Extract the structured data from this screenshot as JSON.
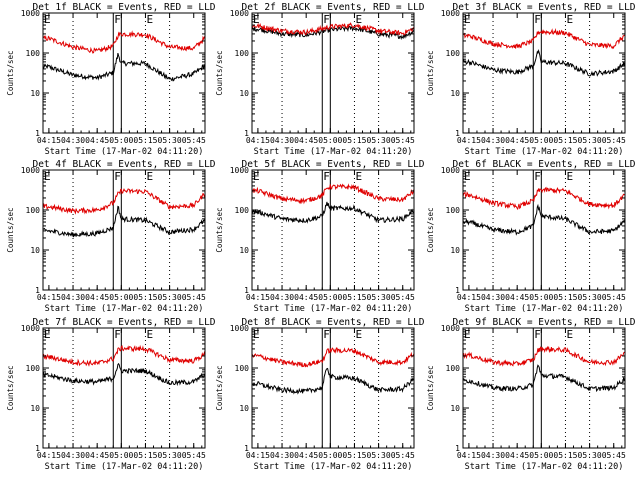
{
  "figure": {
    "ylabel": "Counts/sec",
    "xlabel": "Start Time (17-Mar-02 04:11:20)",
    "time_ticks": [
      "04:15",
      "04:30",
      "04:45",
      "05:00",
      "05:15",
      "05:30",
      "05:45"
    ],
    "y_ticks": [
      "1",
      "10",
      "100",
      "1000"
    ],
    "colors": {
      "events": "#000000",
      "lld": "#e00000",
      "frame": "#000000"
    },
    "background": "#ffffff"
  },
  "chart_data": [
    {
      "type": "line",
      "title": "Det 1f BLACK = Events, RED = LLD",
      "yscale": "log",
      "ylim": [
        1,
        1000
      ],
      "xlim": [
        "04:11:20",
        "05:52:00"
      ],
      "region_markers": [
        {
          "label": "F",
          "from": "04:55",
          "to": "05:00"
        },
        {
          "label": "E",
          "from": "05:15",
          "to": "05:52"
        }
      ],
      "vlines_dotted": [
        "04:30",
        "05:30"
      ],
      "series": [
        {
          "name": "Events",
          "color": "#000000",
          "x": [
            "04:15",
            "04:30",
            "04:45",
            "04:55",
            "04:58",
            "05:00",
            "05:15",
            "05:30",
            "05:45",
            "05:52"
          ],
          "y": [
            45,
            28,
            24,
            32,
            95,
            55,
            55,
            22,
            30,
            48
          ]
        },
        {
          "name": "LLD",
          "color": "#e00000",
          "x": [
            "04:15",
            "04:30",
            "04:45",
            "04:55",
            "04:58",
            "05:00",
            "05:15",
            "05:30",
            "05:45",
            "05:52"
          ],
          "y": [
            230,
            140,
            110,
            150,
            280,
            300,
            290,
            140,
            130,
            240
          ]
        }
      ]
    },
    {
      "type": "line",
      "title": "Det 2f BLACK = Events, RED = LLD",
      "yscale": "log",
      "ylim": [
        1,
        1000
      ],
      "xlim": [
        "04:11:20",
        "05:52:00"
      ],
      "region_markers": [
        {
          "label": "F",
          "from": "04:55",
          "to": "05:00"
        },
        {
          "label": "E",
          "from": "05:15",
          "to": "05:52"
        }
      ],
      "vlines_dotted": [
        "04:30",
        "05:30"
      ],
      "series": [
        {
          "name": "Events",
          "color": "#000000",
          "x": [
            "04:15",
            "04:30",
            "04:45",
            "05:00",
            "05:15",
            "05:30",
            "05:45",
            "05:52"
          ],
          "y": [
            400,
            300,
            280,
            380,
            420,
            300,
            260,
            350
          ]
        },
        {
          "name": "LLD",
          "color": "#e00000",
          "x": [
            "04:15",
            "04:30",
            "04:45",
            "05:00",
            "05:15",
            "05:30",
            "05:45",
            "05:52"
          ],
          "y": [
            470,
            360,
            330,
            450,
            500,
            360,
            310,
            410
          ]
        }
      ]
    },
    {
      "type": "line",
      "title": "Det 3f BLACK = Events, RED = LLD",
      "yscale": "log",
      "ylim": [
        1,
        1000
      ],
      "xlim": [
        "04:11:20",
        "05:52:00"
      ],
      "region_markers": [
        {
          "label": "F",
          "from": "04:55",
          "to": "05:00"
        },
        {
          "label": "E",
          "from": "05:15",
          "to": "05:52"
        }
      ],
      "vlines_dotted": [
        "04:30",
        "05:30"
      ],
      "series": [
        {
          "name": "Events",
          "color": "#000000",
          "x": [
            "04:15",
            "04:30",
            "04:45",
            "04:55",
            "04:58",
            "05:00",
            "05:15",
            "05:30",
            "05:45",
            "05:52"
          ],
          "y": [
            60,
            38,
            33,
            48,
            110,
            60,
            55,
            30,
            35,
            55
          ]
        },
        {
          "name": "LLD",
          "color": "#e00000",
          "x": [
            "04:15",
            "04:30",
            "04:45",
            "04:55",
            "04:58",
            "05:00",
            "05:15",
            "05:30",
            "05:45",
            "05:52"
          ],
          "y": [
            270,
            170,
            145,
            200,
            330,
            340,
            320,
            160,
            150,
            280
          ]
        }
      ]
    },
    {
      "type": "line",
      "title": "Det 4f BLACK = Events, RED = LLD",
      "yscale": "log",
      "ylim": [
        1,
        1000
      ],
      "xlim": [
        "04:11:20",
        "05:52:00"
      ],
      "region_markers": [
        {
          "label": "F",
          "from": "04:55",
          "to": "05:00"
        },
        {
          "label": "E",
          "from": "05:15",
          "to": "05:52"
        }
      ],
      "vlines_dotted": [
        "04:30",
        "05:30"
      ],
      "series": [
        {
          "name": "Events",
          "color": "#000000",
          "x": [
            "04:15",
            "04:30",
            "04:45",
            "04:55",
            "04:58",
            "05:00",
            "05:15",
            "05:30",
            "05:45",
            "05:52"
          ],
          "y": [
            30,
            24,
            26,
            36,
            120,
            60,
            55,
            28,
            33,
            55
          ]
        },
        {
          "name": "LLD",
          "color": "#e00000",
          "x": [
            "04:15",
            "04:30",
            "04:45",
            "04:55",
            "04:58",
            "05:00",
            "05:15",
            "05:30",
            "05:45",
            "05:52"
          ],
          "y": [
            120,
            95,
            100,
            150,
            250,
            300,
            290,
            120,
            130,
            260
          ]
        }
      ]
    },
    {
      "type": "line",
      "title": "Det 5f BLACK = Events, RED = LLD",
      "yscale": "log",
      "ylim": [
        1,
        1000
      ],
      "xlim": [
        "04:11:20",
        "05:52:00"
      ],
      "region_markers": [
        {
          "label": "F",
          "from": "04:55",
          "to": "05:00"
        },
        {
          "label": "E",
          "from": "05:15",
          "to": "05:52"
        }
      ],
      "vlines_dotted": [
        "04:30",
        "05:30"
      ],
      "series": [
        {
          "name": "Events",
          "color": "#000000",
          "x": [
            "04:15",
            "04:30",
            "04:45",
            "04:55",
            "04:58",
            "05:00",
            "05:15",
            "05:30",
            "05:45",
            "05:52"
          ],
          "y": [
            90,
            60,
            55,
            70,
            150,
            110,
            110,
            55,
            60,
            100
          ]
        },
        {
          "name": "LLD",
          "color": "#e00000",
          "x": [
            "04:15",
            "04:30",
            "04:45",
            "04:55",
            "04:58",
            "05:00",
            "05:15",
            "05:30",
            "05:45",
            "05:52"
          ],
          "y": [
            300,
            190,
            170,
            230,
            360,
            380,
            370,
            190,
            180,
            300
          ]
        }
      ]
    },
    {
      "type": "line",
      "title": "Det 6f BLACK = Events, RED = LLD",
      "yscale": "log",
      "ylim": [
        1,
        1000
      ],
      "xlim": [
        "04:11:20",
        "05:52:00"
      ],
      "region_markers": [
        {
          "label": "F",
          "from": "04:55",
          "to": "05:00"
        },
        {
          "label": "E",
          "from": "05:15",
          "to": "05:52"
        }
      ],
      "vlines_dotted": [
        "04:30",
        "05:30"
      ],
      "series": [
        {
          "name": "Events",
          "color": "#000000",
          "x": [
            "04:15",
            "04:30",
            "04:45",
            "04:55",
            "04:58",
            "05:00",
            "05:15",
            "05:30",
            "05:45",
            "05:52"
          ],
          "y": [
            50,
            32,
            28,
            40,
            130,
            70,
            60,
            28,
            30,
            55
          ]
        },
        {
          "name": "LLD",
          "color": "#e00000",
          "x": [
            "04:15",
            "04:30",
            "04:45",
            "04:55",
            "04:58",
            "05:00",
            "05:15",
            "05:30",
            "05:45",
            "05:52"
          ],
          "y": [
            240,
            150,
            120,
            170,
            300,
            320,
            300,
            140,
            130,
            240
          ]
        }
      ]
    },
    {
      "type": "line",
      "title": "Det 7f BLACK = Events, RED = LLD",
      "yscale": "log",
      "ylim": [
        1,
        1000
      ],
      "xlim": [
        "04:11:20",
        "05:52:00"
      ],
      "region_markers": [
        {
          "label": "F",
          "from": "04:55",
          "to": "05:00"
        },
        {
          "label": "E",
          "from": "05:15",
          "to": "05:52"
        }
      ],
      "vlines_dotted": [
        "04:30",
        "05:30"
      ],
      "series": [
        {
          "name": "Events",
          "color": "#000000",
          "x": [
            "04:15",
            "04:30",
            "04:45",
            "04:55",
            "04:58",
            "05:00",
            "05:15",
            "05:30",
            "05:45",
            "05:52"
          ],
          "y": [
            65,
            48,
            45,
            55,
            120,
            85,
            85,
            42,
            45,
            70
          ]
        },
        {
          "name": "LLD",
          "color": "#e00000",
          "x": [
            "04:15",
            "04:30",
            "04:45",
            "04:55",
            "04:58",
            "05:00",
            "05:15",
            "05:30",
            "05:45",
            "05:52"
          ],
          "y": [
            190,
            140,
            130,
            170,
            280,
            310,
            300,
            160,
            150,
            220
          ]
        }
      ]
    },
    {
      "type": "line",
      "title": "Det 8f BLACK = Events, RED = LLD",
      "yscale": "log",
      "ylim": [
        1,
        1000
      ],
      "xlim": [
        "04:11:20",
        "05:52:00"
      ],
      "region_markers": [
        {
          "label": "F",
          "from": "04:55",
          "to": "05:00"
        },
        {
          "label": "E",
          "from": "05:15",
          "to": "05:52"
        }
      ],
      "vlines_dotted": [
        "04:30",
        "05:30"
      ],
      "series": [
        {
          "name": "Events",
          "color": "#000000",
          "x": [
            "04:15",
            "04:30",
            "04:45",
            "04:55",
            "04:58",
            "05:00",
            "05:15",
            "05:30",
            "05:45",
            "05:52"
          ],
          "y": [
            40,
            28,
            26,
            32,
            110,
            60,
            55,
            28,
            30,
            55
          ]
        },
        {
          "name": "LLD",
          "color": "#e00000",
          "x": [
            "04:15",
            "04:30",
            "04:45",
            "04:55",
            "04:58",
            "05:00",
            "05:15",
            "05:30",
            "05:45",
            "05:52"
          ],
          "y": [
            200,
            140,
            120,
            150,
            260,
            280,
            270,
            140,
            140,
            230
          ]
        }
      ]
    },
    {
      "type": "line",
      "title": "Det 9f BLACK = Events, RED = LLD",
      "yscale": "log",
      "ylim": [
        1,
        1000
      ],
      "xlim": [
        "04:11:20",
        "05:52:00"
      ],
      "region_markers": [
        {
          "label": "F",
          "from": "04:55",
          "to": "05:00"
        },
        {
          "label": "E",
          "from": "05:15",
          "to": "05:52"
        }
      ],
      "vlines_dotted": [
        "04:30",
        "05:30"
      ],
      "series": [
        {
          "name": "Events",
          "color": "#000000",
          "x": [
            "04:15",
            "04:30",
            "04:45",
            "04:55",
            "04:58",
            "05:00",
            "05:15",
            "05:30",
            "05:45",
            "05:52"
          ],
          "y": [
            48,
            32,
            30,
            38,
            120,
            65,
            60,
            30,
            32,
            55
          ]
        },
        {
          "name": "LLD",
          "color": "#e00000",
          "x": [
            "04:15",
            "04:30",
            "04:45",
            "04:55",
            "04:58",
            "05:00",
            "05:15",
            "05:30",
            "05:45",
            "05:52"
          ],
          "y": [
            210,
            140,
            125,
            160,
            280,
            300,
            280,
            140,
            140,
            240
          ]
        }
      ]
    }
  ]
}
